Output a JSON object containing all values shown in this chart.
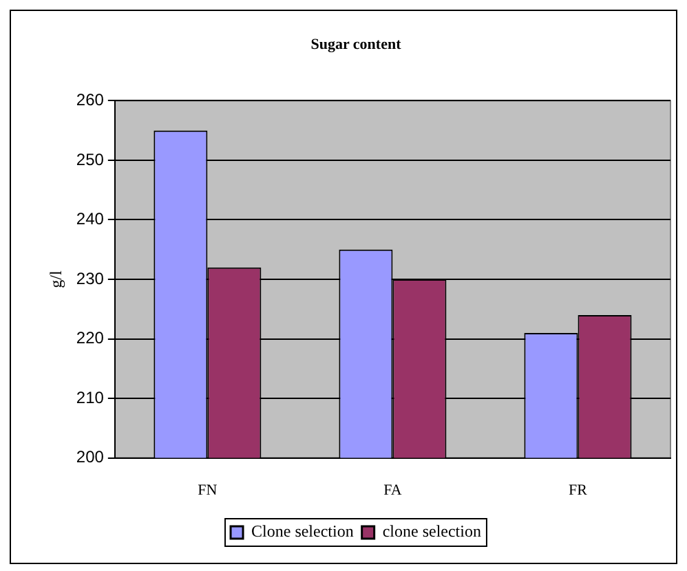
{
  "chart_data": {
    "type": "bar",
    "title": "Sugar content",
    "ylabel": "g/l",
    "categories": [
      "FN",
      "FA",
      "FR"
    ],
    "series": [
      {
        "name": "Clone selection",
        "color": "#9999ff",
        "values": [
          255,
          235,
          221
        ]
      },
      {
        "name": "clone selection",
        "color": "#993366",
        "values": [
          232,
          230,
          224
        ]
      }
    ],
    "ylim": [
      200,
      260
    ],
    "yticks": [
      200,
      210,
      220,
      230,
      240,
      250,
      260
    ],
    "grid": "y",
    "legend": "bottom"
  }
}
